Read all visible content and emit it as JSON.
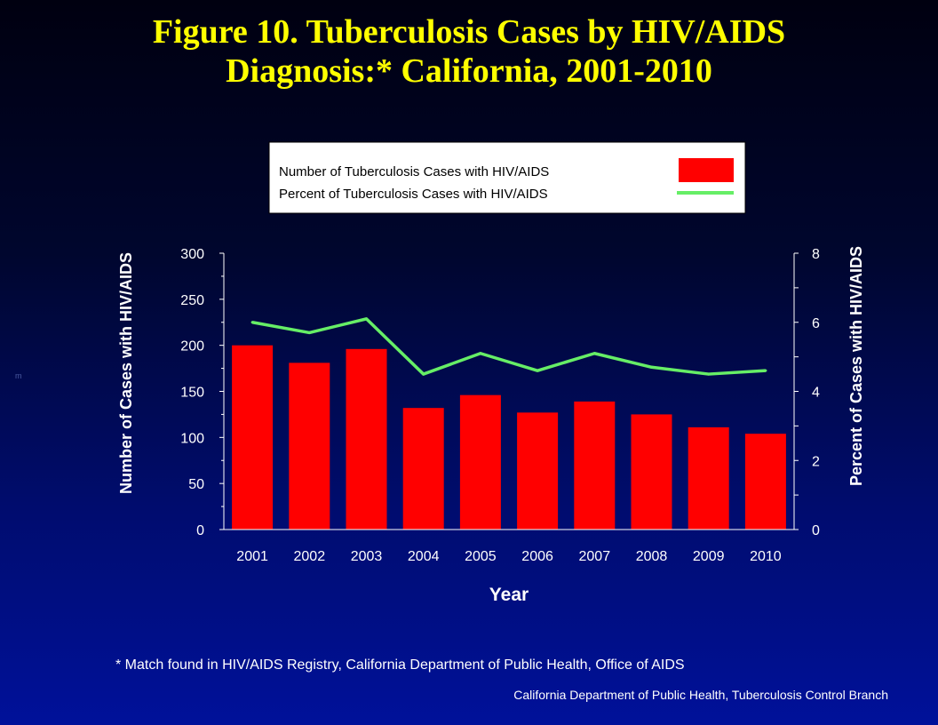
{
  "title_line1": "Figure 10. Tuberculosis Cases by HIV/AIDS",
  "title_line2": "Diagnosis:*  California, 2001-2010",
  "footnote": "* Match found in HIV/AIDS Registry, California Department of Public Health, Office of AIDS",
  "source": "California Department  of Public Health, Tuberculosis Control Branch",
  "stray_mark": "m",
  "colors": {
    "title": "#ffff00",
    "bar": "#ff0000",
    "line": "#66ee66",
    "text": "#ffffff",
    "legend_bg": "#ffffff",
    "legend_text": "#000000"
  },
  "chart_data": {
    "type": "bar+line",
    "categories": [
      "2001",
      "2002",
      "2003",
      "2004",
      "2005",
      "2006",
      "2007",
      "2008",
      "2009",
      "2010"
    ],
    "series": [
      {
        "name": "Number of Tuberculosis Cases with HIV/AIDS",
        "type": "bar",
        "axis": "left",
        "values": [
          200,
          181,
          196,
          132,
          146,
          127,
          139,
          125,
          111,
          104
        ]
      },
      {
        "name": "Percent of Tuberculosis Cases with HIV/AIDS",
        "type": "line",
        "axis": "right",
        "values": [
          6.0,
          5.7,
          6.1,
          4.5,
          5.1,
          4.6,
          5.1,
          4.7,
          4.5,
          4.6
        ]
      }
    ],
    "xlabel": "Year",
    "ylabel_left": "Number of Cases with HIV/AIDS",
    "ylabel_right": "Percent of Cases with HIV/AIDS",
    "ylim_left": [
      0,
      300
    ],
    "yticks_left": [
      0,
      50,
      100,
      150,
      200,
      250,
      300
    ],
    "ylim_right": [
      0,
      8
    ],
    "yticks_right": [
      0,
      2,
      4,
      6,
      8
    ],
    "grid": false,
    "legend_position": "top-center"
  }
}
